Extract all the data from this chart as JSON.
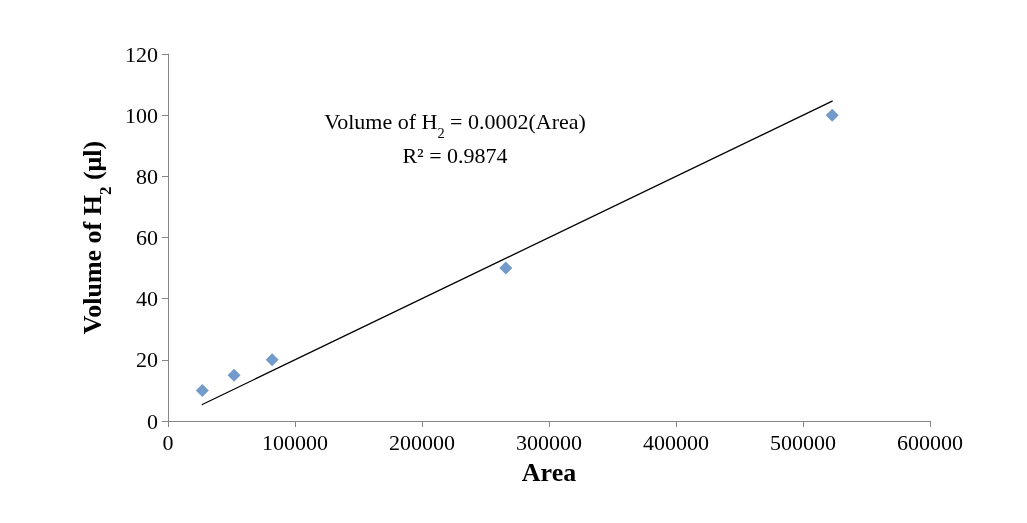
{
  "chart_data": {
    "type": "scatter",
    "xlabel": "Area",
    "ylabel": "Volume of H$_{2}$ (μl)",
    "series": [
      {
        "color": "#4f81bd",
        "marker": "diamond",
        "x": [
          27000,
          52000,
          82000,
          266000,
          523000
        ],
        "values": [
          10,
          15,
          20,
          50,
          100
        ]
      },
      {
        "type": "line",
        "color": "#000000",
        "marker": "none",
        "x": [
          27000,
          523000
        ],
        "values": [
          5.4,
          104.6
        ]
      }
    ],
    "annotations": [
      "Volume of H$_{2}$ = 0.0002(Area)",
      "R² = 0.9874"
    ],
    "xlim": [
      0,
      600000
    ],
    "xticks": [
      0,
      100000,
      200000,
      300000,
      400000,
      500000,
      600000
    ],
    "ylim": [
      0,
      120
    ],
    "yticks": [
      0,
      20,
      40,
      60,
      80,
      100,
      120
    ],
    "grid": false
  }
}
